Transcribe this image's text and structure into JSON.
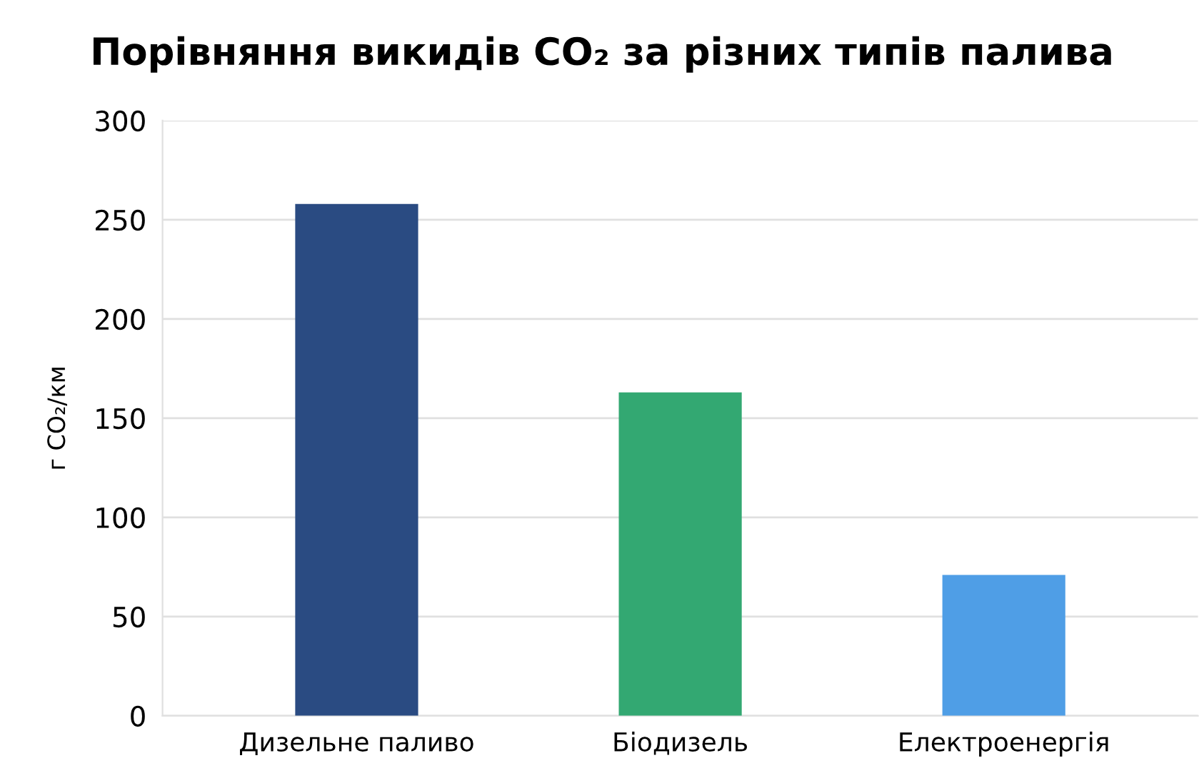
{
  "chart_data": {
    "type": "bar",
    "title": "Порівняння викидів CO₂ за різних типів палива",
    "ylabel": "г CO₂/км",
    "categories": [
      "Дизельне паливо",
      "Біодизель",
      "Електроенергія"
    ],
    "values": [
      258,
      163,
      71
    ],
    "colors": [
      "#2a4b82",
      "#33a872",
      "#4f9ee6"
    ],
    "ylim": [
      0,
      300
    ],
    "yticks": [
      0,
      50,
      100,
      150,
      200,
      250,
      300
    ],
    "grid": "y"
  }
}
